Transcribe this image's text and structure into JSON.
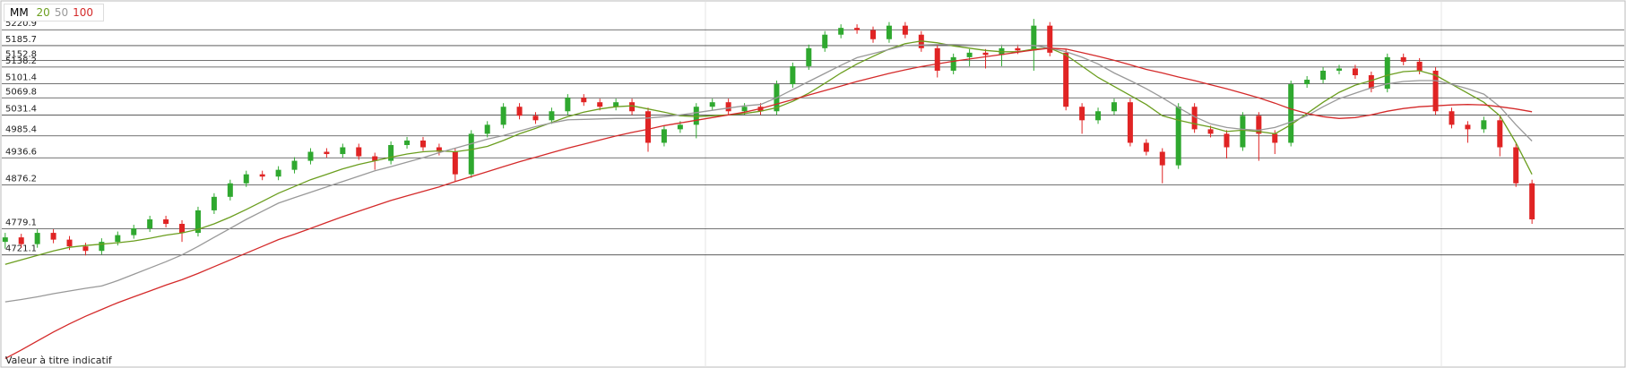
{
  "chart_data": {
    "type": "candlestick",
    "legend_title": "MM",
    "note": "Valeur à titre indicatif",
    "up_color": "#2fa82f",
    "down_color": "#e02424",
    "ylim": [
      4472,
      5283
    ],
    "yticks": [
      5220.9,
      5185.7,
      5152.8,
      5138.2,
      5101.4,
      5069.8,
      5031.4,
      4985.4,
      4936.6,
      4876.2,
      4779.1,
      4721.1
    ],
    "open": [
      4750,
      4760,
      4745,
      4770,
      4755,
      4740,
      4730,
      4750,
      4765,
      4780,
      4800,
      4790,
      4770,
      4820,
      4850,
      4880,
      4900,
      4895,
      4910,
      4930,
      4950,
      4945,
      4960,
      4940,
      4930,
      4965,
      4975,
      4960,
      4950,
      4900,
      4990,
      5010,
      5050,
      5030,
      5020,
      5040,
      5070,
      5060,
      5050,
      5060,
      5040,
      4970,
      5000,
      5010,
      5050,
      5060,
      5040,
      5050,
      5040,
      5100,
      5140,
      5180,
      5210,
      5225,
      5220,
      5200,
      5230,
      5210,
      5180,
      5130,
      5160,
      5170,
      5165,
      5180,
      5175,
      5230,
      5170,
      5050,
      5020,
      5040,
      5060,
      4970,
      4950,
      4920,
      5050,
      5000,
      4990,
      4960,
      5030,
      4990,
      4970,
      5100,
      5110,
      5130,
      5135,
      5120,
      5090,
      5160,
      5150,
      5130,
      5040,
      5010,
      5000,
      5020,
      4960,
      4880
    ],
    "high": [
      4770,
      4768,
      4778,
      4778,
      4763,
      4748,
      4758,
      4773,
      4788,
      4808,
      4808,
      4798,
      4828,
      4858,
      4888,
      4908,
      4908,
      4918,
      4938,
      4958,
      4958,
      4968,
      4968,
      4948,
      4973,
      4983,
      4983,
      4968,
      4958,
      4998,
      5018,
      5058,
      5058,
      5038,
      5048,
      5078,
      5078,
      5068,
      5068,
      5068,
      5048,
      5008,
      5018,
      5058,
      5068,
      5068,
      5058,
      5058,
      5108,
      5148,
      5188,
      5218,
      5233,
      5233,
      5228,
      5238,
      5238,
      5218,
      5188,
      5168,
      5178,
      5178,
      5188,
      5188,
      5245,
      5238,
      5178,
      5058,
      5048,
      5068,
      5068,
      4978,
      4958,
      5058,
      5058,
      5008,
      4998,
      5038,
      5038,
      4998,
      5108,
      5118,
      5138,
      5143,
      5143,
      5128,
      5168,
      5168,
      5158,
      5138,
      5048,
      5018,
      5028,
      5028,
      4968,
      4888
    ],
    "low": [
      4735,
      4737,
      4737,
      4747,
      4732,
      4720,
      4722,
      4742,
      4757,
      4772,
      4782,
      4750,
      4762,
      4812,
      4842,
      4872,
      4887,
      4887,
      4902,
      4922,
      4937,
      4937,
      4932,
      4910,
      4922,
      4957,
      4952,
      4942,
      4885,
      4892,
      4982,
      5002,
      5022,
      5012,
      5012,
      5032,
      5052,
      5042,
      5042,
      5032,
      4950,
      4962,
      4992,
      4980,
      5042,
      5032,
      5032,
      5032,
      5032,
      5092,
      5132,
      5172,
      5202,
      5212,
      5192,
      5192,
      5202,
      5172,
      5115,
      5122,
      5140,
      5135,
      5140,
      5167,
      5130,
      5162,
      5042,
      4990,
      5012,
      5032,
      4962,
      4942,
      4880,
      4912,
      4992,
      4982,
      4935,
      4952,
      4930,
      4945,
      4962,
      5092,
      5102,
      5122,
      5112,
      5082,
      5082,
      5142,
      5122,
      5032,
      5002,
      4970,
      4992,
      4940,
      4872,
      4790
    ],
    "close": [
      4760,
      4745,
      4770,
      4755,
      4740,
      4730,
      4750,
      4765,
      4780,
      4800,
      4790,
      4770,
      4820,
      4850,
      4880,
      4900,
      4895,
      4910,
      4930,
      4950,
      4945,
      4960,
      4940,
      4930,
      4965,
      4975,
      4960,
      4950,
      4900,
      4990,
      5010,
      5050,
      5030,
      5020,
      5040,
      5070,
      5060,
      5050,
      5060,
      5040,
      4970,
      5000,
      5010,
      5050,
      5060,
      5040,
      5050,
      5040,
      5100,
      5140,
      5180,
      5210,
      5225,
      5220,
      5200,
      5230,
      5210,
      5180,
      5130,
      5160,
      5170,
      5165,
      5180,
      5175,
      5230,
      5170,
      5050,
      5020,
      5040,
      5060,
      4970,
      4950,
      4920,
      5050,
      5000,
      4990,
      4960,
      5030,
      4990,
      4970,
      5100,
      5110,
      5130,
      5135,
      5120,
      5090,
      5160,
      5150,
      5130,
      5040,
      5010,
      5000,
      5020,
      4960,
      4880,
      4800
    ],
    "series": [
      {
        "name": "20",
        "color": "#6b9e1f",
        "values": [
          4700,
          4710,
          4720,
          4730,
          4738,
          4742,
          4745,
          4748,
          4752,
          4758,
          4765,
          4770,
          4778,
          4790,
          4805,
          4822,
          4840,
          4858,
          4873,
          4888,
          4900,
          4912,
          4922,
          4930,
          4938,
          4945,
          4950,
          4952,
          4950,
          4955,
          4962,
          4975,
          4990,
          5002,
          5015,
          5028,
          5038,
          5045,
          5050,
          5052,
          5045,
          5038,
          5030,
          5028,
          5030,
          5032,
          5035,
          5040,
          5048,
          5062,
          5080,
          5102,
          5125,
          5145,
          5162,
          5178,
          5190,
          5196,
          5192,
          5185,
          5180,
          5175,
          5172,
          5172,
          5178,
          5180,
          5165,
          5140,
          5115,
          5095,
          5075,
          5055,
          5030,
          5020,
          5012,
          5005,
          4995,
          4998,
          4995,
          4990,
          5010,
          5035,
          5060,
          5082,
          5098,
          5108,
          5120,
          5128,
          5130,
          5120,
          5100,
          5080,
          5060,
          5030,
          4970,
          4900
        ]
      },
      {
        "name": "50",
        "color": "#999999",
        "values": [
          4617,
          4622,
          4628,
          4635,
          4641,
          4647,
          4652,
          4664,
          4678,
          4692,
          4706,
          4721,
          4740,
          4760,
          4780,
          4800,
          4818,
          4836,
          4848,
          4860,
          4872,
          4884,
          4896,
          4908,
          4917,
          4927,
          4937,
          4948,
          4958,
          4968,
          4978,
          4986,
          4996,
          5006,
          5014,
          5021,
          5022,
          5023,
          5024,
          5024,
          5025,
          5028,
          5032,
          5037,
          5042,
          5047,
          5052,
          5055,
          5070,
          5088,
          5106,
          5124,
          5142,
          5159,
          5168,
          5177,
          5186,
          5187,
          5188,
          5188,
          5187,
          5186,
          5186,
          5186,
          5186,
          5180,
          5172,
          5160,
          5145,
          5125,
          5108,
          5090,
          5070,
          5048,
          5028,
          5012,
          5004,
          5000,
          4998,
          5004,
          5016,
          5030,
          5050,
          5068,
          5080,
          5092,
          5101,
          5106,
          5108,
          5108,
          5100,
          5090,
          5078,
          5050,
          5010,
          4974
        ]
      },
      {
        "name": "100",
        "color": "#d42a2a",
        "values": [
          4491,
          4510,
          4530,
          4550,
          4568,
          4585,
          4600,
          4615,
          4628,
          4641,
          4654,
          4666,
          4680,
          4695,
          4710,
          4725,
          4740,
          4755,
          4767,
          4780,
          4793,
          4806,
          4818,
          4830,
          4842,
          4852,
          4862,
          4872,
          4884,
          4895,
          4906,
          4917,
          4928,
          4938,
          4948,
          4958,
          4967,
          4976,
          4985,
          4993,
          5000,
          5008,
          5014,
          5020,
          5026,
          5032,
          5038,
          5046,
          5056,
          5066,
          5076,
          5086,
          5096,
          5106,
          5115,
          5124,
          5132,
          5139,
          5145,
          5151,
          5156,
          5161,
          5166,
          5171,
          5176,
          5180,
          5178,
          5170,
          5162,
          5153,
          5143,
          5133,
          5125,
          5116,
          5108,
          5099,
          5090,
          5080,
          5070,
          5058,
          5045,
          5035,
          5028,
          5024,
          5026,
          5032,
          5040,
          5046,
          5050,
          5052,
          5054,
          5055,
          5054,
          5050,
          5045,
          5039
        ]
      }
    ]
  }
}
